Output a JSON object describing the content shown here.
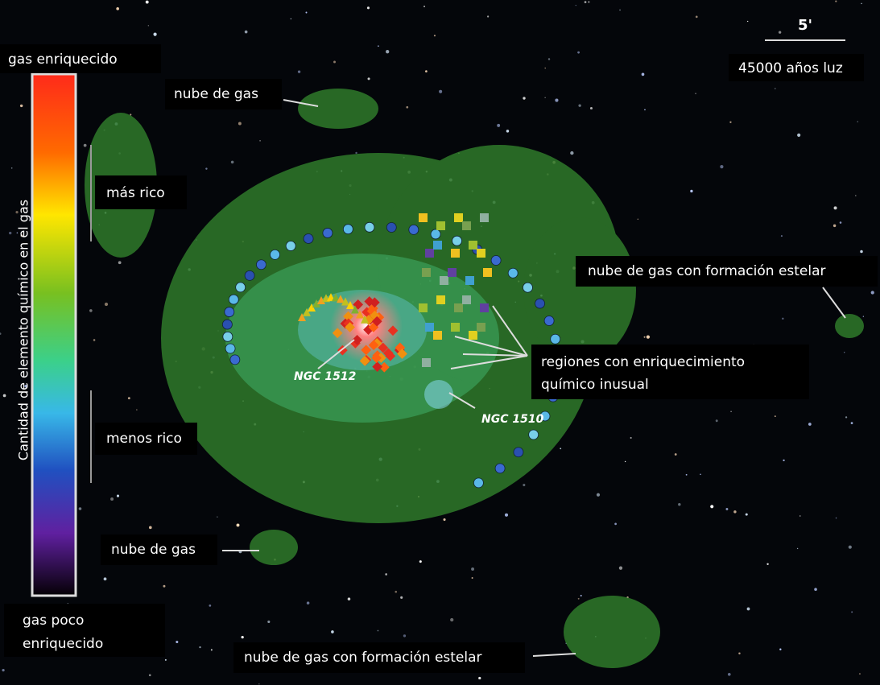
{
  "scale": {
    "angle": "5'",
    "distance": "45000 años luz"
  },
  "colorbar": {
    "top": "gas enriquecido",
    "axis_label": "Cantidad de elemento químico en el gas",
    "high": "más rico",
    "low": "menos rico",
    "bottom": [
      "gas poco",
      "enriquecido"
    ]
  },
  "annotations": {
    "cloud_top": "nube de gas",
    "cloud_left": "nube de gas",
    "cloud_star_right": "nube de gas con formación estelar",
    "cloud_star_bottom": "nube de gas con formación estelar",
    "unusual_regions": [
      "regiones con enriquecimiento",
      "químico inusual"
    ],
    "galaxy_main": "NGC 1512",
    "galaxy_companion": "NGC 1510"
  }
}
